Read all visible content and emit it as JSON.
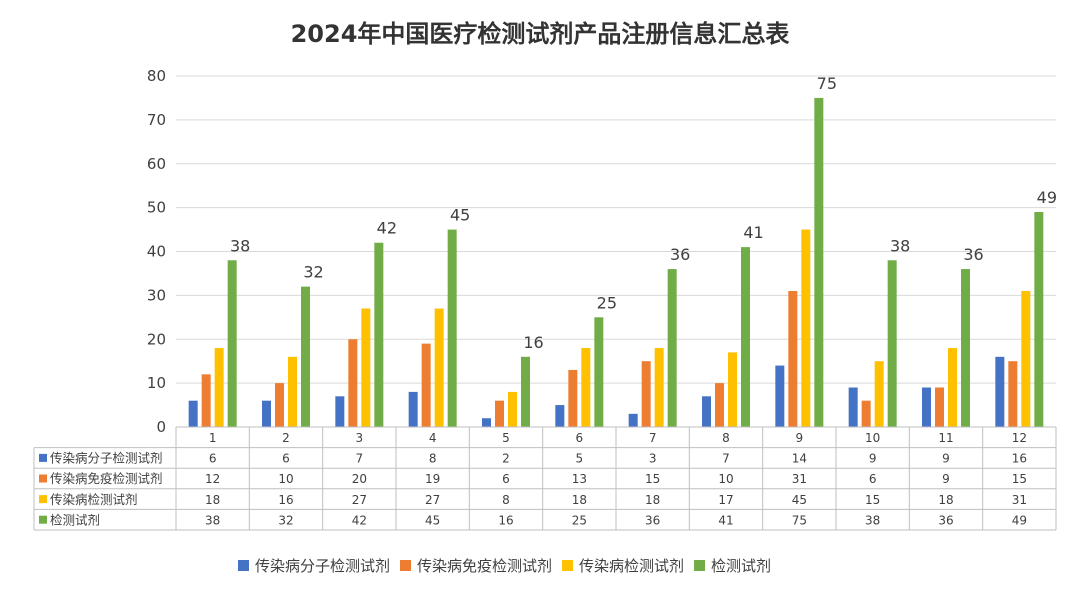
{
  "chart_data": {
    "type": "bar",
    "title": "2024年中国医疗检测试剂产品注册信息汇总表",
    "categories": [
      "1",
      "2",
      "3",
      "4",
      "5",
      "6",
      "7",
      "8",
      "9",
      "10",
      "11",
      "12"
    ],
    "ylim": [
      0,
      80
    ],
    "yticks": [
      "0",
      "10",
      "20",
      "30",
      "40",
      "50",
      "60",
      "70",
      "80"
    ],
    "grid": true,
    "legend_position": "bottom",
    "data_table": true,
    "data_labels_series": "检测试剂",
    "series": [
      {
        "name": "传染病分子检测试剂",
        "color": "#4472C4",
        "values": [
          6,
          6,
          7,
          8,
          2,
          5,
          3,
          7,
          14,
          9,
          9,
          16
        ]
      },
      {
        "name": "传染病免疫检测试剂",
        "color": "#ED7D31",
        "values": [
          12,
          10,
          20,
          19,
          6,
          13,
          15,
          10,
          31,
          6,
          9,
          15
        ]
      },
      {
        "name": "传染病检测试剂",
        "color": "#FFC000",
        "values": [
          18,
          16,
          27,
          27,
          8,
          18,
          18,
          17,
          45,
          15,
          18,
          31
        ]
      },
      {
        "name": "检测试剂",
        "color": "#70AD47",
        "values": [
          38,
          32,
          42,
          45,
          16,
          25,
          36,
          41,
          75,
          38,
          36,
          49
        ]
      }
    ]
  }
}
